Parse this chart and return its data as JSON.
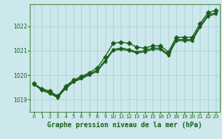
{
  "title": "Graphe pression niveau de la mer (hPa)",
  "xlabel_fontsize": 7.0,
  "bg_color": "#cce8ec",
  "grid_color": "#aacfd4",
  "line_color": "#1a5e1a",
  "marker_color": "#1a5e1a",
  "ylim": [
    1018.5,
    1022.9
  ],
  "xlim": [
    -0.5,
    23.5
  ],
  "yticks": [
    1019,
    1020,
    1021,
    1022
  ],
  "xticks": [
    0,
    1,
    2,
    3,
    4,
    5,
    6,
    7,
    8,
    9,
    10,
    11,
    12,
    13,
    14,
    15,
    16,
    17,
    18,
    19,
    20,
    21,
    22,
    23
  ],
  "series": [
    [
      1019.65,
      1019.45,
      1019.35,
      1019.15,
      1019.55,
      1019.8,
      1019.95,
      1020.1,
      1020.3,
      1020.75,
      1021.3,
      1021.35,
      1021.3,
      1021.15,
      1021.1,
      1021.2,
      1021.2,
      1020.95,
      1021.55,
      1021.55,
      1021.55,
      1022.1,
      1022.55,
      1022.65
    ],
    [
      1019.65,
      1019.4,
      1019.3,
      1019.1,
      1019.5,
      1019.75,
      1019.9,
      1020.05,
      1020.2,
      1020.6,
      1021.05,
      1021.1,
      1021.05,
      1020.95,
      1021.0,
      1021.1,
      1021.1,
      1020.85,
      1021.45,
      1021.45,
      1021.45,
      1022.0,
      1022.45,
      1022.55
    ],
    [
      1019.65,
      1019.4,
      1019.3,
      1019.1,
      1019.5,
      1019.75,
      1019.9,
      1020.05,
      1020.2,
      1020.6,
      1021.05,
      1021.1,
      1021.05,
      1020.95,
      1021.0,
      1021.1,
      1021.1,
      1020.85,
      1021.45,
      1021.45,
      1021.45,
      1022.0,
      1022.45,
      1022.55
    ],
    [
      1019.62,
      1019.38,
      1019.25,
      1019.08,
      1019.45,
      1019.72,
      1019.85,
      1020.0,
      1020.15,
      1020.55,
      1021.0,
      1021.05,
      1021.0,
      1020.9,
      1020.95,
      1021.05,
      1021.05,
      1020.8,
      1021.4,
      1021.4,
      1021.4,
      1021.95,
      1022.4,
      1022.5
    ]
  ],
  "series_with_markers": [
    0
  ],
  "marker_size": 3.5,
  "linewidths": [
    1.0,
    0.9,
    0.9,
    0.9
  ]
}
